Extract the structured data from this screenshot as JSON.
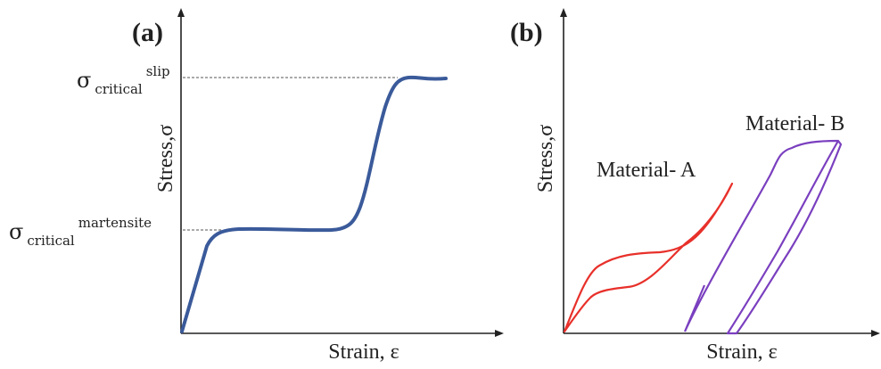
{
  "panel_a": {
    "label": "(a)",
    "x_axis_label": "Strain, ε",
    "y_axis_label": "Stress,σ",
    "slip_level": {
      "symbol": "σ",
      "subscript": "critical",
      "superscript": "slip"
    },
    "martensite_level": {
      "symbol": "σ",
      "subscript": "critical",
      "superscript": "martensite"
    },
    "colors": {
      "curve": "#3a5a9a",
      "guide": "#555555"
    }
  },
  "panel_b": {
    "label": "(b)",
    "x_axis_label": "Strain, ε",
    "y_axis_label": "Stress,σ",
    "material_a": {
      "label": "Material- A",
      "color": "#e8302a"
    },
    "material_b": {
      "label": "Material- B",
      "color": "#7a3fbf"
    }
  }
}
